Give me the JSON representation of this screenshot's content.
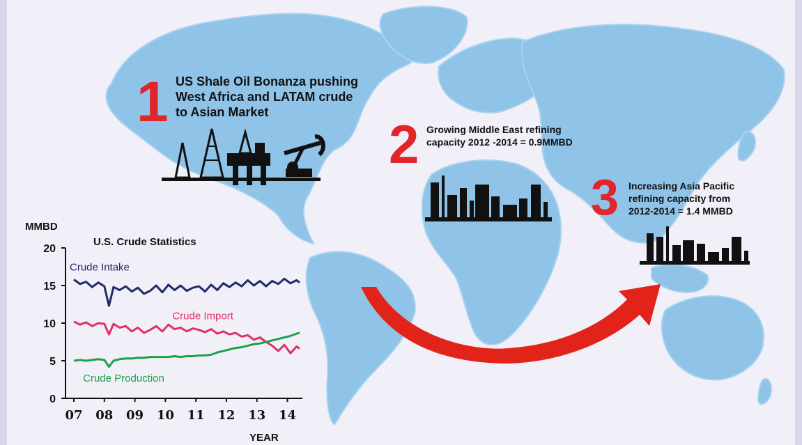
{
  "annotations": [
    {
      "number": "1",
      "lines": [
        "US Shale Oil Bonanza pushing",
        "West Africa and LATAM crude",
        "to Asian Market"
      ]
    },
    {
      "number": "2",
      "lines": [
        "Growing Middle East  refining",
        "capacity  2012 -2014 = 0.9MMBD"
      ]
    },
    {
      "number": "3",
      "lines": [
        "Increasing Asia Pacific",
        "refining capacity from",
        "2012-2014 = 1.4 MMBD"
      ]
    }
  ],
  "colors": {
    "map_ocean": "#f1eff8",
    "map_land": "#8fc3e8",
    "arrow": "#e2231a",
    "crude_intake": "#1f2a66",
    "crude_import": "#e0306a",
    "crude_production": "#1aa14a",
    "silhouette": "#111111"
  },
  "chart_data": {
    "type": "line",
    "title": "U.S. Crude  Statistics",
    "ylabel": "MMBD",
    "xlabel": "YEAR",
    "x_tick_labels": [
      "07",
      "08",
      "09",
      "10",
      "11",
      "12",
      "13",
      "14"
    ],
    "y_tick_labels": [
      "0",
      "5",
      "10",
      "15",
      "20"
    ],
    "xlim": [
      2007.0,
      2014.4
    ],
    "ylim": [
      0,
      20
    ],
    "grid": false,
    "series": [
      {
        "name": "Crude Intake",
        "x": [
          2007.0,
          2007.2,
          2007.4,
          2007.6,
          2007.8,
          2008.0,
          2008.15,
          2008.3,
          2008.5,
          2008.7,
          2008.9,
          2009.1,
          2009.3,
          2009.5,
          2009.7,
          2009.9,
          2010.1,
          2010.3,
          2010.5,
          2010.7,
          2010.9,
          2011.1,
          2011.3,
          2011.5,
          2011.7,
          2011.9,
          2012.1,
          2012.3,
          2012.5,
          2012.7,
          2012.9,
          2013.1,
          2013.3,
          2013.5,
          2013.7,
          2013.9,
          2014.1,
          2014.3,
          2014.4
        ],
        "values": [
          15.8,
          15.2,
          15.5,
          14.8,
          15.4,
          14.9,
          12.3,
          14.8,
          14.4,
          14.9,
          14.2,
          14.7,
          13.9,
          14.3,
          15.0,
          14.1,
          15.1,
          14.4,
          15.0,
          14.3,
          14.7,
          14.9,
          14.2,
          15.1,
          14.4,
          15.3,
          14.8,
          15.4,
          14.9,
          15.7,
          15.0,
          15.6,
          14.9,
          15.6,
          15.2,
          15.9,
          15.3,
          15.7,
          15.4
        ]
      },
      {
        "name": "Crude Import",
        "x": [
          2007.0,
          2007.2,
          2007.4,
          2007.6,
          2007.8,
          2008.0,
          2008.15,
          2008.3,
          2008.5,
          2008.7,
          2008.9,
          2009.1,
          2009.3,
          2009.5,
          2009.7,
          2009.9,
          2010.1,
          2010.3,
          2010.5,
          2010.7,
          2010.9,
          2011.1,
          2011.3,
          2011.5,
          2011.7,
          2011.9,
          2012.1,
          2012.3,
          2012.5,
          2012.7,
          2012.9,
          2013.1,
          2013.3,
          2013.5,
          2013.7,
          2013.9,
          2014.1,
          2014.3,
          2014.4
        ],
        "values": [
          10.2,
          9.8,
          10.1,
          9.6,
          10.0,
          9.9,
          8.5,
          9.9,
          9.4,
          9.6,
          8.9,
          9.4,
          8.7,
          9.1,
          9.6,
          8.9,
          9.8,
          9.2,
          9.4,
          8.9,
          9.3,
          9.1,
          8.8,
          9.2,
          8.6,
          8.9,
          8.5,
          8.7,
          8.2,
          8.4,
          7.8,
          8.1,
          7.5,
          7.0,
          6.3,
          7.1,
          6.0,
          6.9,
          6.6
        ]
      },
      {
        "name": "Crude Production",
        "x": [
          2007.0,
          2007.2,
          2007.4,
          2007.6,
          2007.8,
          2008.0,
          2008.15,
          2008.3,
          2008.5,
          2008.7,
          2008.9,
          2009.1,
          2009.3,
          2009.5,
          2009.7,
          2009.9,
          2010.1,
          2010.3,
          2010.5,
          2010.7,
          2010.9,
          2011.1,
          2011.3,
          2011.5,
          2011.7,
          2011.9,
          2012.1,
          2012.3,
          2012.5,
          2012.7,
          2012.9,
          2013.1,
          2013.3,
          2013.5,
          2013.7,
          2013.9,
          2014.1,
          2014.3,
          2014.4
        ],
        "values": [
          5.0,
          5.1,
          5.0,
          5.1,
          5.2,
          5.1,
          4.2,
          5.0,
          5.2,
          5.3,
          5.3,
          5.4,
          5.4,
          5.5,
          5.5,
          5.5,
          5.5,
          5.6,
          5.5,
          5.6,
          5.6,
          5.7,
          5.7,
          5.8,
          6.1,
          6.3,
          6.5,
          6.7,
          6.8,
          7.0,
          7.2,
          7.3,
          7.5,
          7.7,
          7.9,
          8.1,
          8.3,
          8.6,
          8.7
        ]
      }
    ]
  }
}
